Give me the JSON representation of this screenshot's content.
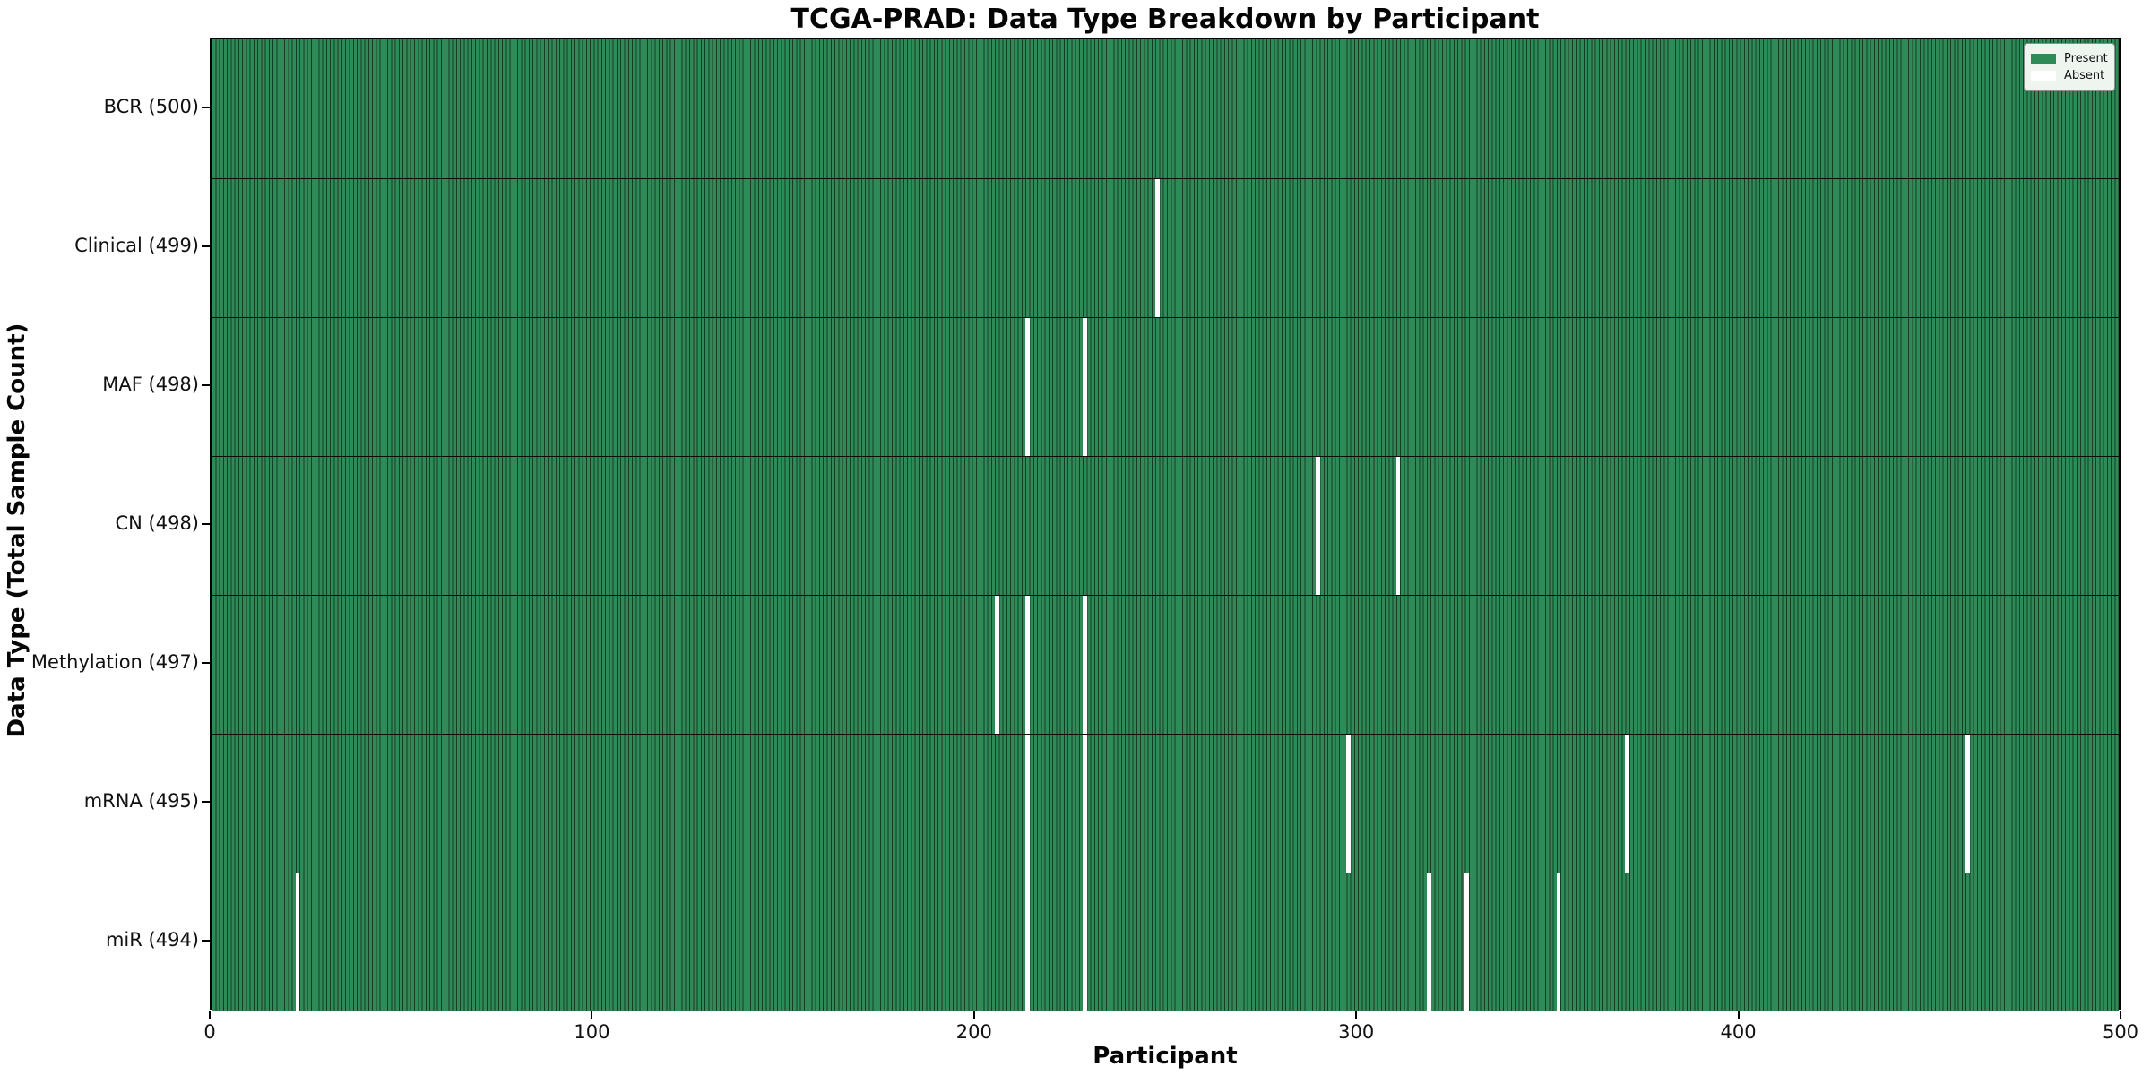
{
  "chart_data": {
    "type": "heatmap",
    "title": "TCGA-PRAD: Data Type Breakdown by Participant",
    "xlabel": "Participant",
    "ylabel": "Data Type (Total Sample Count)",
    "x_range": [
      0,
      500
    ],
    "x_ticks": [
      0,
      100,
      200,
      300,
      400,
      500
    ],
    "n_participants": 500,
    "grid": false,
    "legend": {
      "position": "upper right",
      "entries": [
        {
          "label": "Present",
          "color": "#2e8b57"
        },
        {
          "label": "Absent",
          "color": "#ffffff"
        }
      ]
    },
    "colors": {
      "present": "#2e8b57",
      "absent": "#ffffff",
      "cell_edge": "#143d27",
      "row_separator": "#0a0a0a"
    },
    "rows": [
      {
        "data_type": "BCR",
        "label": "BCR (500)",
        "present_count": 500,
        "absent_participants": []
      },
      {
        "data_type": "Clinical",
        "label": "Clinical (499)",
        "present_count": 499,
        "absent_participants": [
          247
        ]
      },
      {
        "data_type": "MAF",
        "label": "MAF (498)",
        "present_count": 498,
        "absent_participants": [
          213,
          228
        ]
      },
      {
        "data_type": "CN",
        "label": "CN (498)",
        "present_count": 498,
        "absent_participants": [
          289,
          310
        ]
      },
      {
        "data_type": "Methylation",
        "label": "Methylation (497)",
        "present_count": 497,
        "absent_participants": [
          205,
          213,
          228
        ]
      },
      {
        "data_type": "mRNA",
        "label": "mRNA (495)",
        "present_count": 495,
        "absent_participants": [
          213,
          228,
          297,
          370,
          459
        ]
      },
      {
        "data_type": "miR",
        "label": "miR (494)",
        "present_count": 494,
        "absent_participants": [
          22,
          213,
          228,
          318,
          328,
          352
        ]
      }
    ]
  }
}
